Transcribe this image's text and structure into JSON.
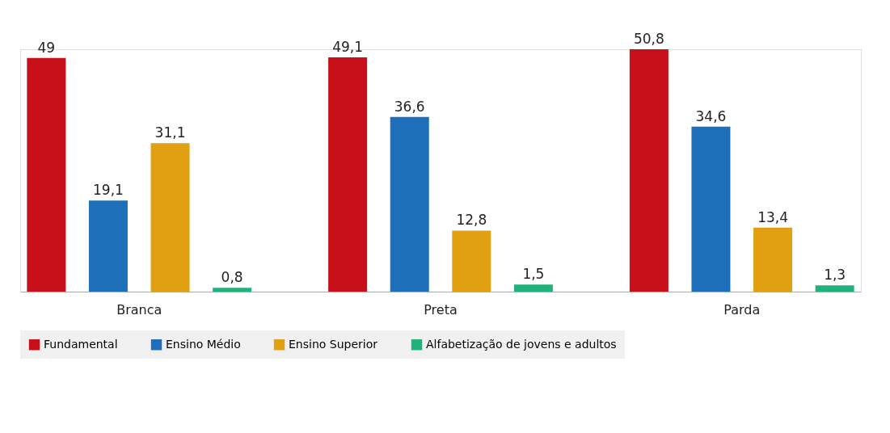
{
  "chart_data": {
    "type": "bar",
    "categories": [
      "Branca",
      "Preta",
      "Parda"
    ],
    "series": [
      {
        "name": "Fundamental",
        "color": "#c8101a",
        "values": [
          49,
          49.1,
          50.8
        ],
        "value_labels": [
          "49",
          "49,1",
          "50,8"
        ]
      },
      {
        "name": "Ensino Médio",
        "color": "#1c6fb8",
        "values": [
          19.1,
          36.6,
          34.6
        ],
        "value_labels": [
          "19,1",
          "36,6",
          "34,6"
        ]
      },
      {
        "name": "Ensino Superior",
        "color": "#e0a012",
        "values": [
          31.1,
          12.8,
          13.4
        ],
        "value_labels": [
          "31,1",
          "12,8",
          "13,4"
        ]
      },
      {
        "name": "Alfabetização de jovens e adultos",
        "color": "#1fb27a",
        "values": [
          0.8,
          1.5,
          1.3
        ],
        "value_labels": [
          "0,8",
          "1,5",
          "1,3"
        ]
      }
    ],
    "legend": "bottom",
    "grid": false
  }
}
